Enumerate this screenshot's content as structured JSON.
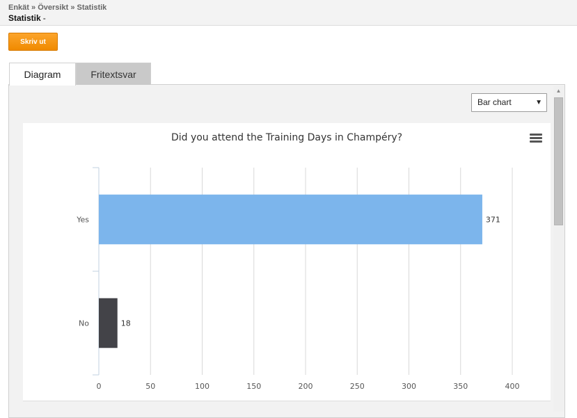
{
  "header": {
    "breadcrumb": [
      "Enkät",
      "Översikt",
      "Statistik"
    ],
    "breadcrumb_sep": "»",
    "title": "Statistik",
    "title_suffix": "-"
  },
  "toolbar": {
    "print_label": "Skriv ut"
  },
  "tabs": [
    {
      "label": "Diagram",
      "active": true
    },
    {
      "label": "Fritextsvar",
      "active": false
    }
  ],
  "chart_type_select": {
    "value": "Bar chart"
  },
  "chart_data": {
    "type": "bar",
    "orientation": "horizontal",
    "title": "Did you attend the Training Days in Champéry?",
    "categories": [
      "Yes",
      "No"
    ],
    "values": [
      371,
      18
    ],
    "colors": [
      "#7cb5ec",
      "#434348"
    ],
    "xlim": [
      0,
      400
    ],
    "ticks": [
      0,
      50,
      100,
      150,
      200,
      250,
      300,
      350,
      400
    ],
    "data_labels": true,
    "grid": true,
    "legend": false
  },
  "colors": {
    "accent": "#f08a00",
    "bar_yes": "#7cb5ec",
    "bar_no": "#434348"
  }
}
